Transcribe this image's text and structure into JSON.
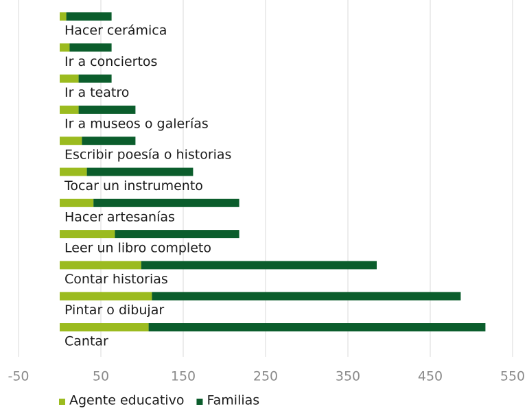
{
  "chart_data": {
    "type": "stacked-barh",
    "categories": [
      "Hacer cerámica",
      "Ir a conciertos",
      "Ir a teatro",
      "Ir a museos o galerías",
      "Escribir poesía o historias",
      "Tocar un instrumento",
      "Hacer artesanías",
      "Leer un libro completo",
      "Contar historias",
      "Pintar o dibujar",
      "Cantar"
    ],
    "series": [
      {
        "name": "Agente educativo",
        "color": "#9bbb1f",
        "values": [
          8,
          12,
          23,
          23,
          27,
          33,
          41,
          67,
          99,
          112,
          108
        ]
      },
      {
        "name": "Familias",
        "color": "#0b5d2c",
        "values": [
          55,
          51,
          40,
          69,
          65,
          129,
          177,
          151,
          286,
          375,
          409
        ]
      }
    ],
    "xlim": [
      -50,
      550
    ],
    "xticks": [
      -50,
      50,
      150,
      250,
      350,
      450,
      550
    ],
    "grid": true
  }
}
